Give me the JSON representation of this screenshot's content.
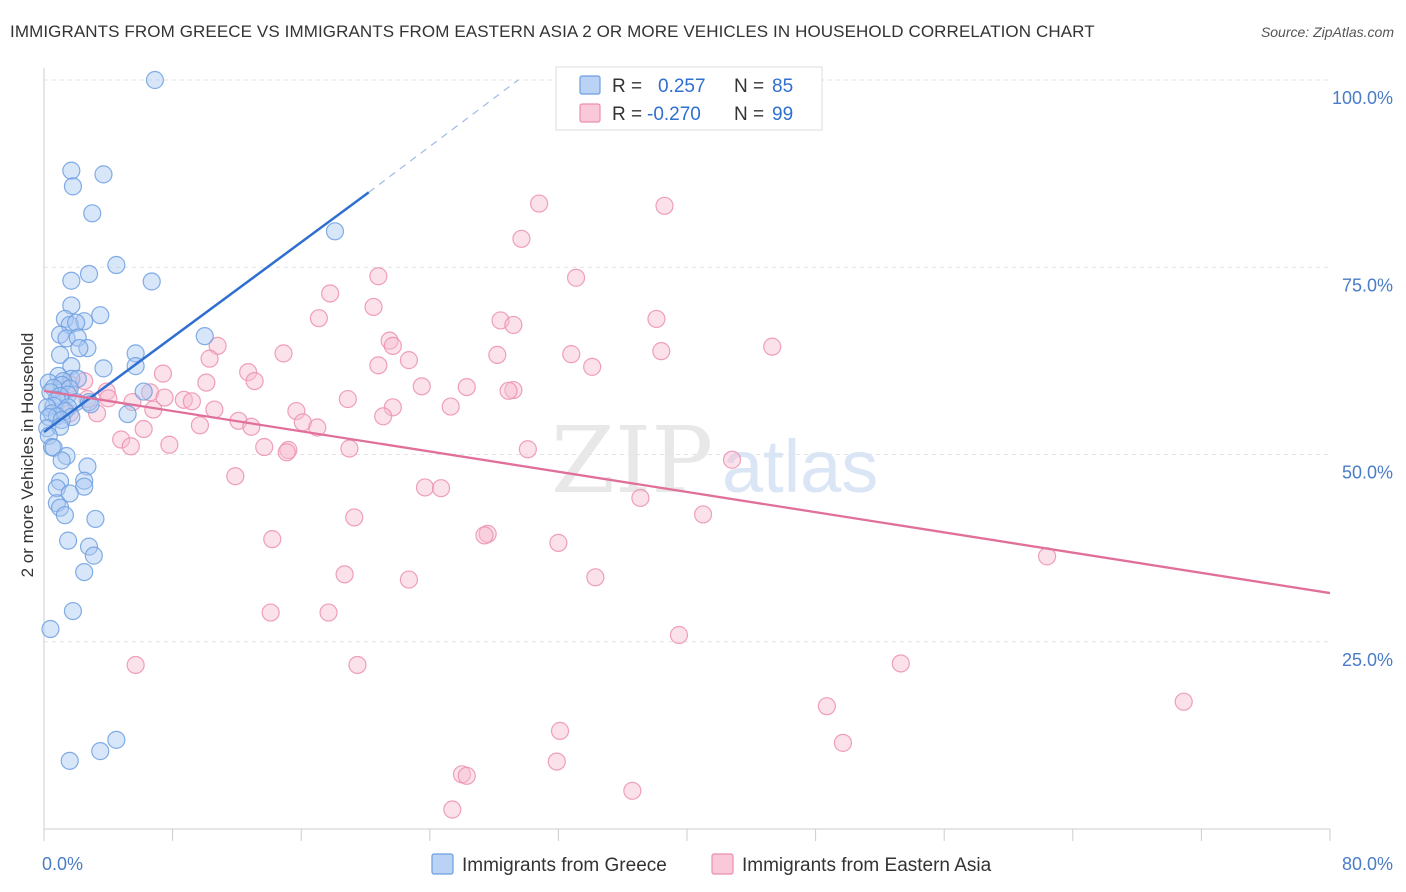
{
  "header": {
    "title": "IMMIGRANTS FROM GREECE VS IMMIGRANTS FROM EASTERN ASIA 2 OR MORE VEHICLES IN HOUSEHOLD CORRELATION CHART",
    "source": "Source: ZipAtlas.com"
  },
  "watermark": {
    "part1": "ZIP",
    "part2": "atlas"
  },
  "legend": {
    "rows": [
      {
        "r_label": "R =",
        "r_value": "0.257",
        "n_label": "N =",
        "n_value": "85",
        "color": "#a9c8f2",
        "stroke": "#6d9fe0"
      },
      {
        "r_label": "R =",
        "r_value": "-0.270",
        "n_label": "N =",
        "n_value": "99",
        "color": "#f7bcd0",
        "stroke": "#ec8fb0"
      }
    ]
  },
  "bottom_legend": [
    {
      "label": "Immigrants from Greece",
      "color": "#a9c8f2",
      "stroke": "#6d9fe0"
    },
    {
      "label": "Immigrants from Eastern Asia",
      "color": "#f7bcd0",
      "stroke": "#ec8fb0"
    }
  ],
  "chart_data": {
    "type": "scatter",
    "title": "IMMIGRANTS FROM GREECE VS IMMIGRANTS FROM EASTERN ASIA 2 OR MORE VEHICLES IN HOUSEHOLD CORRELATION CHART",
    "xlabel": "",
    "ylabel": "2 or more Vehicles in Household",
    "xlim": [
      0,
      80
    ],
    "ylim": [
      0,
      100
    ],
    "x_tick_labels": [
      "0.0%",
      "80.0%"
    ],
    "y_tick_labels": [
      "100.0%",
      "75.0%",
      "50.0%",
      "25.0%"
    ],
    "y_ticks": [
      100,
      75,
      50,
      25
    ],
    "x_minor_ticks": [
      0,
      8,
      16,
      24,
      32,
      40,
      48,
      56,
      64,
      72,
      80
    ],
    "grid": true,
    "legend_position": "top-center",
    "series": [
      {
        "name": "Immigrants from Greece",
        "color": "#6d9fe0",
        "fill": "#a9c8f2",
        "trend": {
          "x": [
            0,
            20.2
          ],
          "y": [
            53.0,
            85.0
          ],
          "dashed_to": [
            29.5,
            100
          ]
        },
        "points": [
          [
            6.9,
            100
          ],
          [
            1.7,
            87.9
          ],
          [
            1.8,
            85.8
          ],
          [
            3.7,
            87.4
          ],
          [
            3.0,
            82.2
          ],
          [
            18.1,
            79.8
          ],
          [
            4.5,
            75.3
          ],
          [
            2.8,
            74.1
          ],
          [
            6.7,
            73.1
          ],
          [
            1.7,
            73.2
          ],
          [
            1.7,
            69.9
          ],
          [
            3.5,
            68.6
          ],
          [
            1.3,
            68.1
          ],
          [
            2.5,
            67.8
          ],
          [
            1.6,
            67.3
          ],
          [
            2.0,
            67.6
          ],
          [
            1.0,
            66.0
          ],
          [
            1.4,
            65.5
          ],
          [
            2.1,
            65.6
          ],
          [
            10.0,
            65.8
          ],
          [
            2.7,
            64.2
          ],
          [
            2.2,
            64.2
          ],
          [
            1.0,
            63.3
          ],
          [
            5.7,
            63.5
          ],
          [
            3.7,
            61.5
          ],
          [
            1.7,
            61.8
          ],
          [
            5.7,
            61.8
          ],
          [
            0.9,
            60.5
          ],
          [
            1.7,
            60.1
          ],
          [
            2.1,
            60.1
          ],
          [
            1.2,
            59.8
          ],
          [
            0.3,
            59.6
          ],
          [
            1.1,
            59.3
          ],
          [
            1.6,
            58.8
          ],
          [
            0.6,
            58.9
          ],
          [
            6.2,
            58.4
          ],
          [
            0.4,
            58.3
          ],
          [
            1.5,
            58.0
          ],
          [
            1.0,
            57.8
          ],
          [
            0.8,
            57.3
          ],
          [
            2.0,
            57.0
          ],
          [
            2.8,
            57.0
          ],
          [
            2.9,
            56.7
          ],
          [
            0.6,
            56.5
          ],
          [
            1.5,
            56.3
          ],
          [
            0.2,
            56.3
          ],
          [
            1.3,
            55.8
          ],
          [
            0.5,
            55.5
          ],
          [
            0.8,
            55.1
          ],
          [
            5.2,
            55.4
          ],
          [
            1.7,
            55.0
          ],
          [
            0.3,
            55.0
          ],
          [
            1.1,
            54.6
          ],
          [
            0.2,
            53.5
          ],
          [
            1.0,
            53.7
          ],
          [
            0.3,
            52.5
          ],
          [
            0.5,
            51.0
          ],
          [
            0.6,
            50.9
          ],
          [
            1.4,
            49.8
          ],
          [
            1.1,
            49.2
          ],
          [
            2.7,
            48.4
          ],
          [
            2.5,
            46.5
          ],
          [
            1.0,
            46.4
          ],
          [
            2.5,
            45.7
          ],
          [
            0.8,
            45.5
          ],
          [
            1.6,
            44.8
          ],
          [
            0.8,
            43.5
          ],
          [
            1.0,
            42.9
          ],
          [
            1.3,
            41.9
          ],
          [
            3.2,
            41.4
          ],
          [
            1.5,
            38.5
          ],
          [
            2.8,
            37.7
          ],
          [
            3.1,
            36.5
          ],
          [
            2.5,
            34.3
          ],
          [
            1.8,
            29.1
          ],
          [
            0.4,
            26.7
          ],
          [
            4.5,
            11.9
          ],
          [
            3.5,
            10.4
          ],
          [
            1.6,
            9.1
          ]
        ]
      },
      {
        "name": "Immigrants from Eastern Asia",
        "color": "#ec8fb0",
        "fill": "#f7bcd0",
        "trend": {
          "x": [
            0,
            80
          ],
          "y": [
            58.5,
            31.5
          ]
        },
        "points": [
          [
            43.0,
            100
          ],
          [
            30.8,
            83.5
          ],
          [
            38.6,
            83.2
          ],
          [
            29.7,
            78.8
          ],
          [
            20.8,
            73.8
          ],
          [
            33.1,
            73.6
          ],
          [
            17.8,
            71.5
          ],
          [
            20.5,
            69.7
          ],
          [
            17.1,
            68.2
          ],
          [
            28.4,
            67.9
          ],
          [
            38.1,
            68.1
          ],
          [
            29.2,
            67.3
          ],
          [
            21.5,
            65.2
          ],
          [
            21.7,
            64.5
          ],
          [
            10.8,
            64.5
          ],
          [
            45.3,
            64.4
          ],
          [
            14.9,
            63.5
          ],
          [
            28.2,
            63.3
          ],
          [
            32.8,
            63.4
          ],
          [
            38.4,
            63.8
          ],
          [
            10.3,
            62.8
          ],
          [
            22.7,
            62.6
          ],
          [
            20.8,
            61.9
          ],
          [
            34.1,
            61.7
          ],
          [
            12.7,
            61.0
          ],
          [
            7.4,
            60.8
          ],
          [
            13.1,
            59.8
          ],
          [
            10.1,
            59.6
          ],
          [
            1.6,
            59.4
          ],
          [
            26.3,
            59.0
          ],
          [
            23.5,
            59.1
          ],
          [
            2.5,
            59.8
          ],
          [
            29.2,
            58.6
          ],
          [
            3.9,
            58.4
          ],
          [
            28.9,
            58.5
          ],
          [
            6.6,
            58.3
          ],
          [
            2.7,
            57.4
          ],
          [
            4.0,
            57.5
          ],
          [
            18.9,
            57.4
          ],
          [
            8.7,
            57.3
          ],
          [
            9.2,
            57.1
          ],
          [
            7.5,
            57.6
          ],
          [
            5.5,
            57.0
          ],
          [
            25.3,
            56.4
          ],
          [
            21.7,
            56.3
          ],
          [
            10.6,
            56.0
          ],
          [
            6.8,
            56.0
          ],
          [
            1.6,
            55.5
          ],
          [
            15.7,
            55.8
          ],
          [
            3.3,
            55.5
          ],
          [
            21.1,
            55.1
          ],
          [
            12.1,
            54.5
          ],
          [
            16.1,
            54.3
          ],
          [
            9.7,
            53.9
          ],
          [
            6.2,
            53.4
          ],
          [
            12.9,
            53.7
          ],
          [
            17.0,
            53.6
          ],
          [
            4.8,
            52.0
          ],
          [
            7.8,
            51.3
          ],
          [
            5.4,
            51.1
          ],
          [
            13.7,
            51.0
          ],
          [
            19.0,
            50.8
          ],
          [
            15.2,
            50.6
          ],
          [
            15.1,
            50.3
          ],
          [
            30.1,
            50.7
          ],
          [
            42.8,
            49.3
          ],
          [
            11.9,
            47.1
          ],
          [
            23.7,
            45.6
          ],
          [
            24.7,
            45.5
          ],
          [
            37.1,
            44.2
          ],
          [
            41.0,
            42.0
          ],
          [
            19.3,
            41.6
          ],
          [
            27.6,
            39.4
          ],
          [
            27.4,
            39.2
          ],
          [
            32.0,
            38.2
          ],
          [
            14.2,
            38.7
          ],
          [
            62.4,
            36.4
          ],
          [
            18.7,
            34.0
          ],
          [
            22.7,
            33.3
          ],
          [
            34.3,
            33.6
          ],
          [
            14.1,
            28.9
          ],
          [
            17.7,
            28.9
          ],
          [
            39.5,
            25.9
          ],
          [
            53.3,
            22.1
          ],
          [
            5.7,
            21.9
          ],
          [
            19.5,
            21.9
          ],
          [
            48.7,
            16.4
          ],
          [
            70.9,
            17.0
          ],
          [
            32.1,
            13.1
          ],
          [
            49.7,
            11.5
          ],
          [
            31.9,
            9.0
          ],
          [
            26.0,
            7.3
          ],
          [
            36.6,
            5.1
          ],
          [
            25.4,
            2.6
          ],
          [
            26.3,
            7.1
          ]
        ]
      }
    ]
  }
}
